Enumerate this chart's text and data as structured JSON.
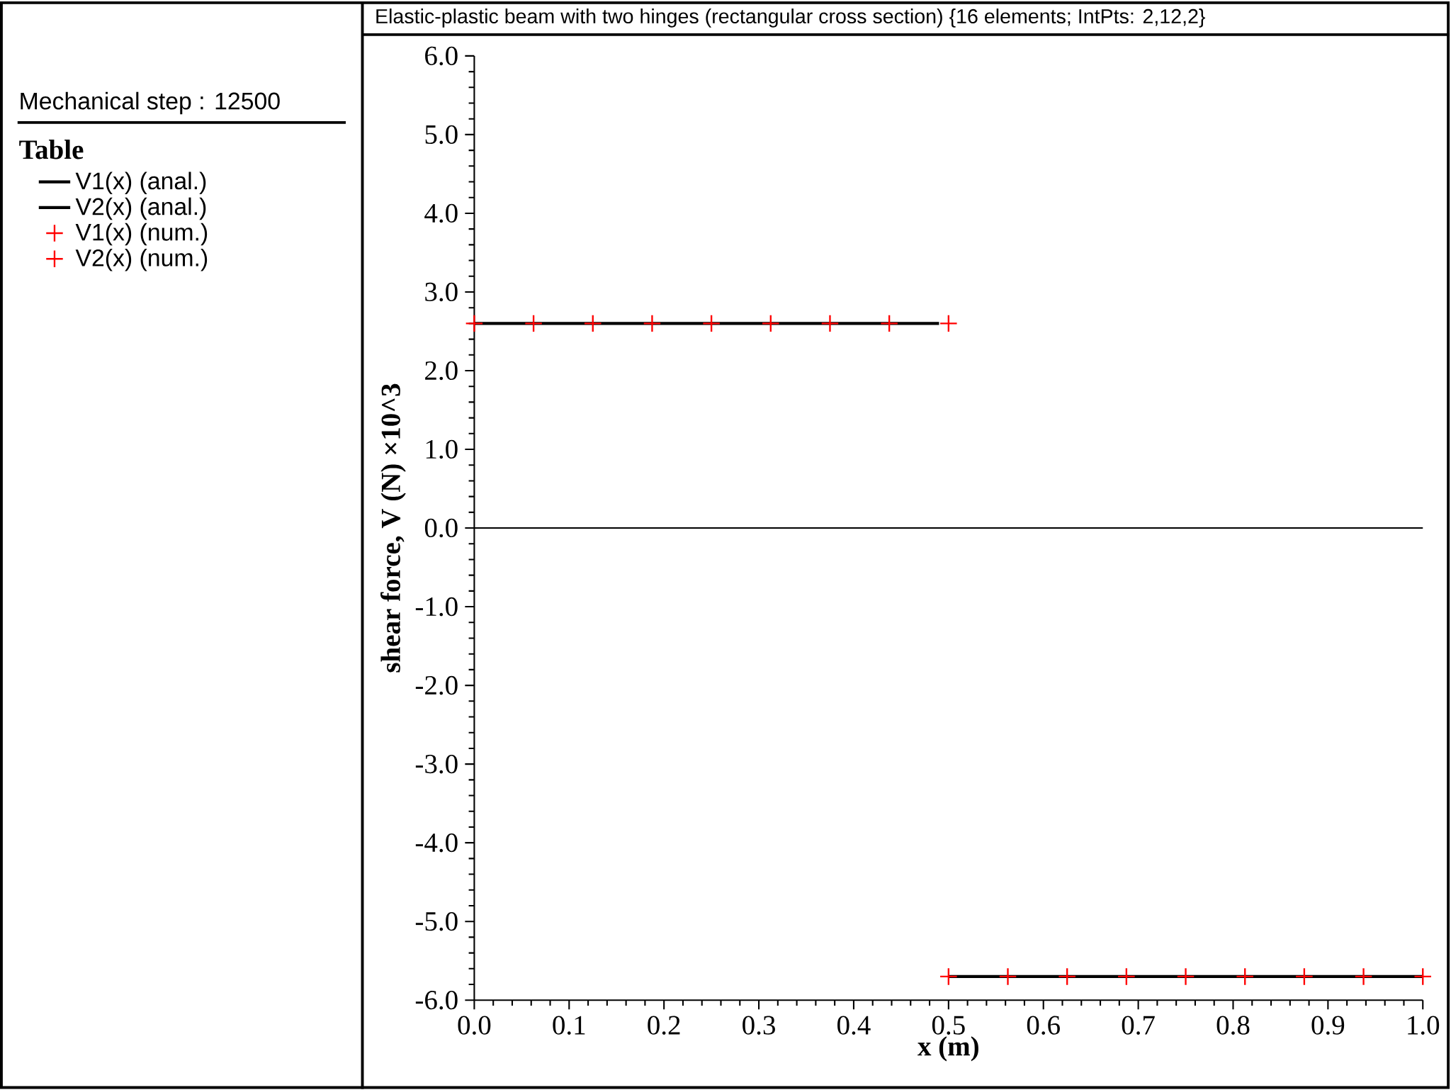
{
  "chart_data": {
    "type": "line",
    "title": "Elastic-plastic beam with two hinges (rectangular cross section) {16 elements; IntPts: 2,12,2}",
    "xlabel": "x (m)",
    "ylabel": "shear force, V (N) ×10^3",
    "legend_title": "Table",
    "annotations": [
      "Mechanical step : 12500"
    ],
    "xlim": [
      0,
      1
    ],
    "ylim": [
      -6,
      6
    ],
    "xticks": [
      {
        "value": 0,
        "label": "0.0"
      },
      {
        "value": 0.1,
        "label": "0.1"
      },
      {
        "value": 0.2,
        "label": "0.2"
      },
      {
        "value": 0.3,
        "label": "0.3"
      },
      {
        "value": 0.4,
        "label": "0.4"
      },
      {
        "value": 0.5,
        "label": "0.5"
      },
      {
        "value": 0.6,
        "label": "0.6"
      },
      {
        "value": 0.7,
        "label": "0.7"
      },
      {
        "value": 0.8,
        "label": "0.8"
      },
      {
        "value": 0.9,
        "label": "0.9"
      },
      {
        "value": 1,
        "label": "1.0"
      }
    ],
    "yticks": [
      {
        "value": 6,
        "label": "6.0"
      },
      {
        "value": 5,
        "label": "5.0"
      },
      {
        "value": 4,
        "label": "4.0"
      },
      {
        "value": 3,
        "label": "3.0"
      },
      {
        "value": 2,
        "label": "2.0"
      },
      {
        "value": 1,
        "label": "1.0"
      },
      {
        "value": 0,
        "label": "0.0"
      },
      {
        "value": -1,
        "label": "-1.0"
      },
      {
        "value": -2,
        "label": "-2.0"
      },
      {
        "value": -3,
        "label": "-3.0"
      },
      {
        "value": -4,
        "label": "-4.0"
      },
      {
        "value": -5,
        "label": "-5.0"
      },
      {
        "value": -6,
        "label": "-6.0"
      }
    ],
    "ref_lines": [
      {
        "axis": "y",
        "value": 0,
        "color": "#000000"
      }
    ],
    "legend": "left",
    "series": [
      {
        "name": "V1(x) (anal.)",
        "color": "#000000",
        "x": [
          0,
          0.49
        ],
        "values": [
          2.6,
          2.6
        ]
      },
      {
        "name": "V2(x) (anal.)",
        "color": "#000000",
        "x": [
          0.5,
          1.0
        ],
        "values": [
          -5.7,
          -5.7
        ]
      },
      {
        "name": "V1(x) (num.)",
        "type": "scatter",
        "marker": "cross",
        "color": "#ff0000",
        "x": [
          0,
          0.0625,
          0.125,
          0.1875,
          0.25,
          0.3125,
          0.375,
          0.4375,
          0.5
        ],
        "values": [
          2.6,
          2.6,
          2.6,
          2.6,
          2.6,
          2.6,
          2.6,
          2.6,
          2.6
        ]
      },
      {
        "name": "V2(x) (num.)",
        "type": "scatter",
        "marker": "cross",
        "color": "#ff0000",
        "x": [
          0.5,
          0.5625,
          0.625,
          0.6875,
          0.75,
          0.8125,
          0.875,
          0.9375,
          1.0
        ],
        "values": [
          -5.7,
          -5.7,
          -5.7,
          -5.7,
          -5.7,
          -5.7,
          -5.7,
          -5.7,
          -5.7
        ]
      }
    ]
  }
}
